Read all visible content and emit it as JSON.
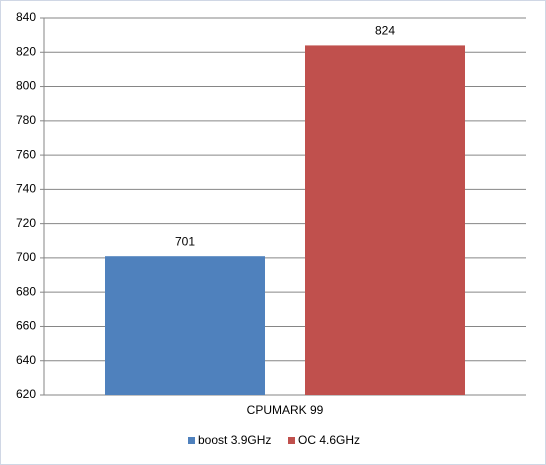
{
  "chart_data": {
    "type": "bar",
    "categories": [
      "CPUMARK 99"
    ],
    "series": [
      {
        "name": "boost 3.9GHz",
        "color": "#4f81bd",
        "values": [
          701
        ]
      },
      {
        "name": "OC 4.6GHz",
        "color": "#c0504d",
        "values": [
          824
        ]
      }
    ],
    "ylim": [
      620,
      840
    ],
    "yticks": [
      620,
      640,
      660,
      680,
      700,
      720,
      740,
      760,
      780,
      800,
      820,
      840
    ],
    "grid": true,
    "legend": "bottom"
  }
}
